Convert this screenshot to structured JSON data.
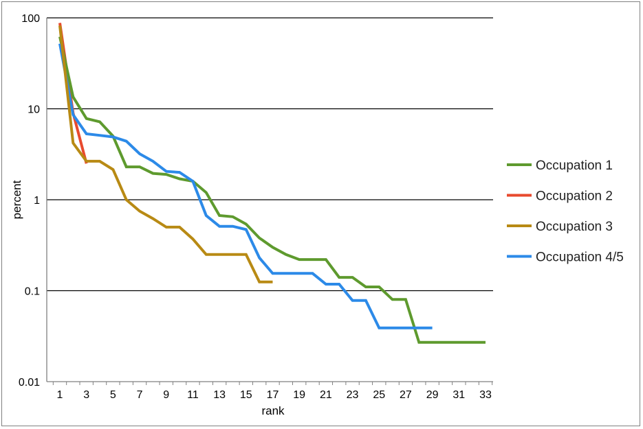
{
  "chart_data": {
    "type": "line",
    "title": "",
    "xlabel": "rank",
    "ylabel": "percent",
    "yscale": "log",
    "ylim": [
      0.01,
      100
    ],
    "xlim": [
      1,
      33
    ],
    "grid": "horizontal major gridlines",
    "legend_position": "right",
    "x_ticks": [
      "1",
      "3",
      "5",
      "7",
      "9",
      "11",
      "13",
      "15",
      "17",
      "19",
      "21",
      "23",
      "25",
      "27",
      "29",
      "31",
      "33"
    ],
    "y_ticks": [
      "0.01",
      "0.1",
      "1",
      "10",
      "100"
    ],
    "series": [
      {
        "name": "Occupation 1",
        "color": "#5e9a2e",
        "x": [
          1,
          2,
          3,
          4,
          5,
          6,
          7,
          8,
          9,
          10,
          11,
          12,
          13,
          14,
          15,
          16,
          17,
          18,
          19,
          20,
          21,
          22,
          23,
          24,
          25,
          26,
          27,
          28,
          29,
          30,
          31,
          32,
          33
        ],
        "y": [
          62,
          13.5,
          7.8,
          7.2,
          5.0,
          2.3,
          2.3,
          1.95,
          1.9,
          1.7,
          1.6,
          1.2,
          0.67,
          0.65,
          0.54,
          0.38,
          0.3,
          0.25,
          0.22,
          0.22,
          0.22,
          0.14,
          0.14,
          0.11,
          0.11,
          0.08,
          0.08,
          0.027,
          0.027,
          0.027,
          0.027,
          0.027,
          0.027
        ]
      },
      {
        "name": "Occupation 2",
        "color": "#e84a2e",
        "x": [
          1,
          2,
          3
        ],
        "y": [
          88,
          9.0,
          2.5
        ]
      },
      {
        "name": "Occupation 3",
        "color": "#b88a14",
        "x": [
          1,
          2,
          3,
          4,
          5,
          6,
          7,
          8,
          9,
          10,
          11,
          12,
          13,
          14,
          15,
          16,
          17
        ],
        "y": [
          82,
          4.2,
          2.65,
          2.65,
          2.15,
          1.0,
          0.75,
          0.62,
          0.5,
          0.5,
          0.37,
          0.25,
          0.25,
          0.25,
          0.25,
          0.125,
          0.125
        ]
      },
      {
        "name": "Occupation 4/5",
        "color": "#2c8ae8",
        "x": [
          1,
          2,
          3,
          4,
          5,
          6,
          7,
          8,
          9,
          10,
          11,
          12,
          13,
          14,
          15,
          16,
          17,
          18,
          19,
          20,
          21,
          22,
          23,
          24,
          25,
          26,
          27,
          28,
          29
        ],
        "y": [
          52,
          8.6,
          5.3,
          5.1,
          4.9,
          4.4,
          3.2,
          2.65,
          2.05,
          2.0,
          1.6,
          0.67,
          0.51,
          0.51,
          0.47,
          0.23,
          0.155,
          0.155,
          0.155,
          0.155,
          0.118,
          0.118,
          0.078,
          0.078,
          0.039,
          0.039,
          0.039,
          0.039,
          0.039
        ]
      }
    ]
  }
}
